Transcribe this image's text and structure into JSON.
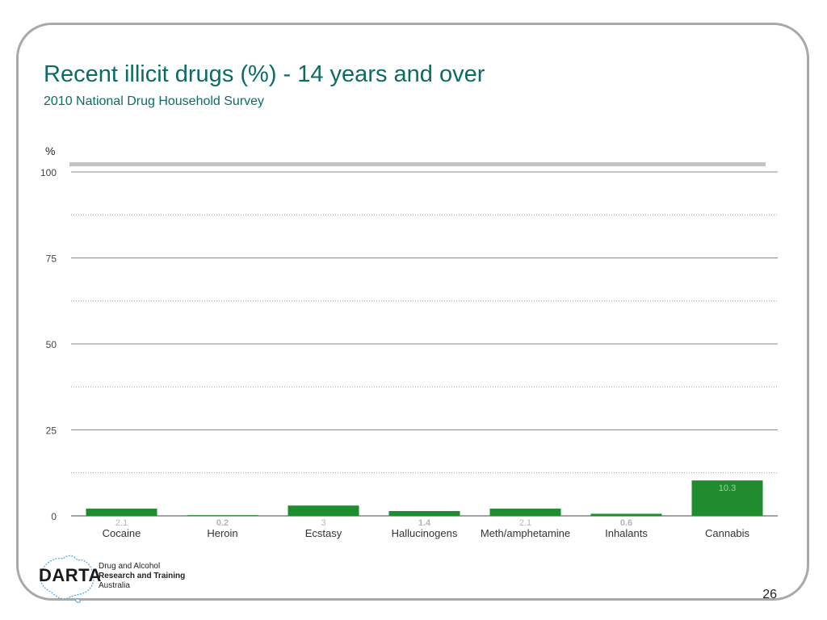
{
  "slide": {
    "title": "Recent illicit drugs (%) - 14 years and over",
    "subtitle": "2010 National Drug Household Survey",
    "page_number": "26"
  },
  "logo": {
    "wordmark": "DARTA",
    "line1": "Drug and Alcohol",
    "line2": "Research and Training",
    "line3": "Australia"
  },
  "chart_data": {
    "type": "bar",
    "ylabel": "%",
    "ylim": [
      0,
      100
    ],
    "yticks": [
      0,
      25,
      50,
      75,
      100
    ],
    "grid": true,
    "categories": [
      "Cocaine",
      "Heroin",
      "Ecstasy",
      "Hallucinogens",
      "Meth/amphetamine",
      "Inhalants",
      "Cannabis"
    ],
    "values": [
      2.1,
      0.2,
      3,
      1.4,
      2.1,
      0.6,
      10.3
    ],
    "data_labels": [
      "2.1",
      "0.2",
      "3",
      "1.4",
      "2.1",
      "0.6",
      "10.3"
    ],
    "colors": {
      "bar": "#1e8c2f",
      "grid": "#888888",
      "label_inside": "#9fd0a5",
      "label_outside": "#b5b5b5"
    }
  }
}
